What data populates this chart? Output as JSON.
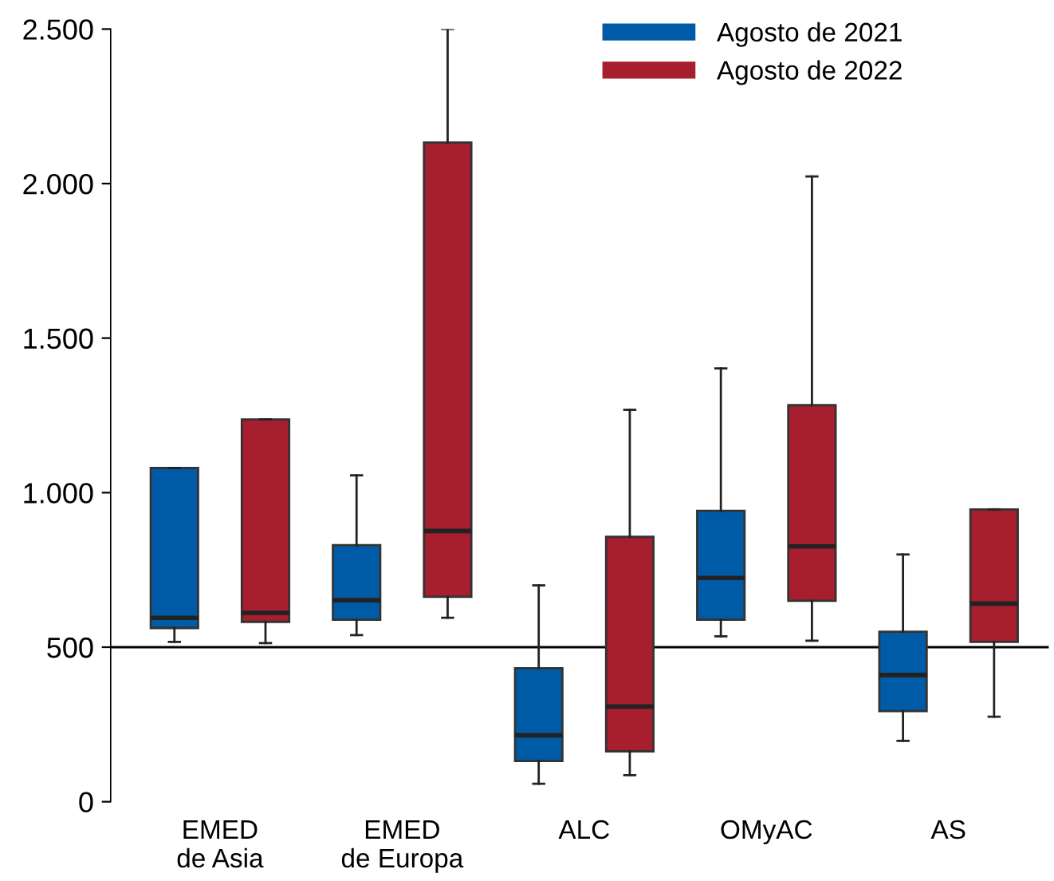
{
  "chart_data": {
    "type": "box",
    "categories": [
      "EMED\nde Asia",
      "EMED\nde Europa",
      "ALC",
      "OMyAC",
      "AS"
    ],
    "series": [
      {
        "name": "Agosto de 2021",
        "color": "#005ba6",
        "boxes": [
          {
            "low": 517,
            "q1": 562,
            "median": 595,
            "q3": 1080,
            "high": 1080
          },
          {
            "low": 539,
            "q1": 589,
            "median": 652,
            "q3": 830,
            "high": 1056
          },
          {
            "low": 58,
            "q1": 132,
            "median": 215,
            "q3": 432,
            "high": 700
          },
          {
            "low": 535,
            "q1": 589,
            "median": 724,
            "q3": 941,
            "high": 1402
          },
          {
            "low": 197,
            "q1": 293,
            "median": 410,
            "q3": 550,
            "high": 800
          }
        ]
      },
      {
        "name": "Agosto de 2022",
        "color": "#a71e2e",
        "boxes": [
          {
            "low": 513,
            "q1": 582,
            "median": 611,
            "q3": 1237,
            "high": 1237
          },
          {
            "low": 595,
            "q1": 663,
            "median": 876,
            "q3": 2133,
            "high": 2500
          },
          {
            "low": 86,
            "q1": 163,
            "median": 308,
            "q3": 857,
            "high": 1268
          },
          {
            "low": 521,
            "q1": 650,
            "median": 826,
            "q3": 1283,
            "high": 2023
          },
          {
            "low": 275,
            "q1": 517,
            "median": 641,
            "q3": 946,
            "high": 946
          }
        ]
      }
    ],
    "ylim": [
      0,
      2500
    ],
    "yticks": [
      {
        "value": 0,
        "label": "0"
      },
      {
        "value": 500,
        "label": "500"
      },
      {
        "value": 1000,
        "label": "1.000"
      },
      {
        "value": 1500,
        "label": "1.500"
      },
      {
        "value": 2000,
        "label": "2.000"
      },
      {
        "value": 2500,
        "label": "2.500"
      }
    ],
    "ref_lines": [
      {
        "axis": "y",
        "value": 500,
        "color": "#000000"
      }
    ],
    "legend": "top right",
    "grid": false
  }
}
